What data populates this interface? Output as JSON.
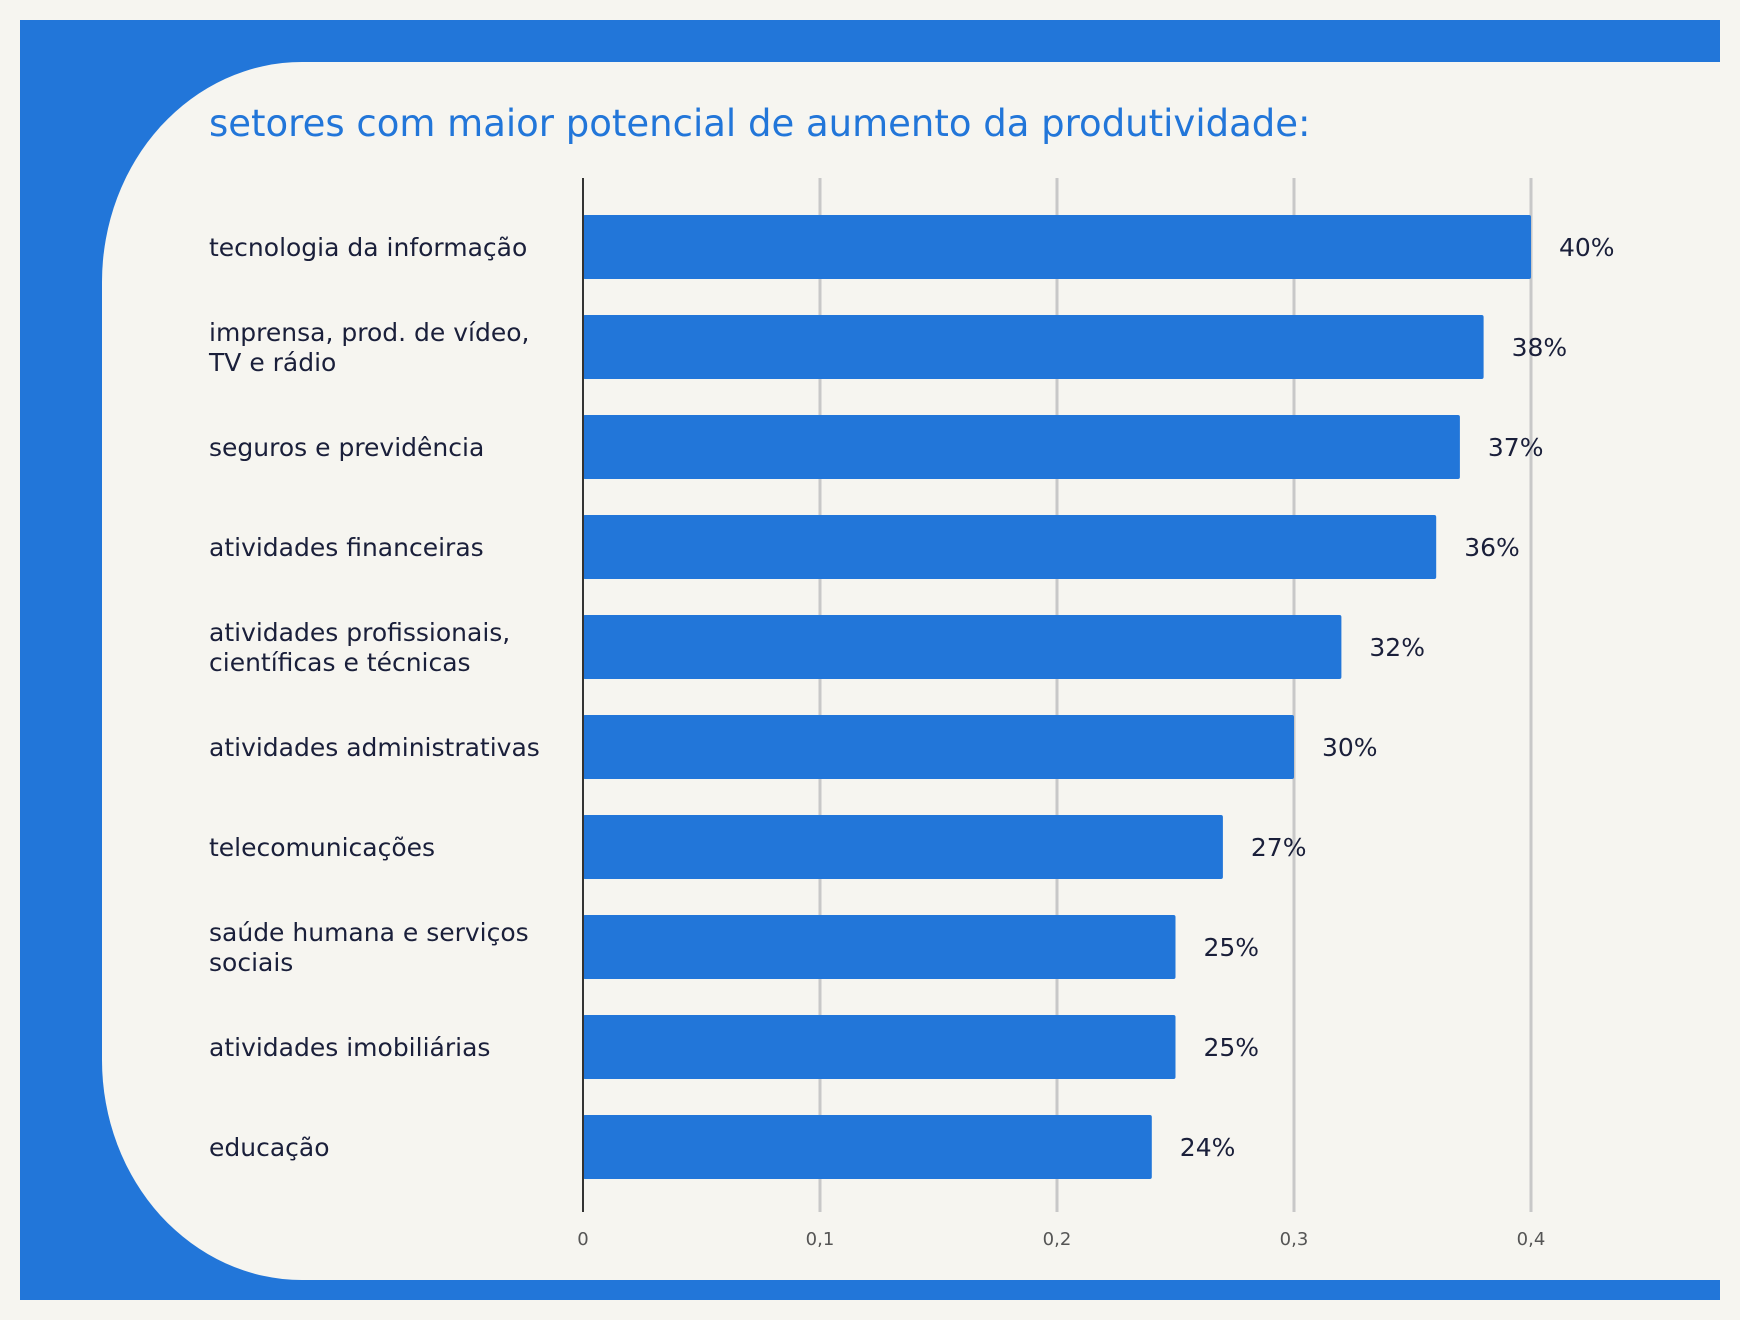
{
  "colors": {
    "frame": "#2276d9",
    "background": "#f6f5f0",
    "bar": "#2276d9",
    "title": "#2276d9",
    "label": "#1a1f3a",
    "grid": "#c8c8c8",
    "axis": "#333333",
    "tick": "#555555"
  },
  "chart_data": {
    "type": "bar",
    "orientation": "horizontal",
    "title": "setores com maior potencial de aumento da produtividade:",
    "categories": [
      [
        "tecnologia da informação"
      ],
      [
        "imprensa, prod. de vídeo,",
        "TV e rádio"
      ],
      [
        "seguros e previdência"
      ],
      [
        "atividades financeiras"
      ],
      [
        "atividades profissionais,",
        "científicas e técnicas"
      ],
      [
        "atividades administrativas"
      ],
      [
        "telecomunicações"
      ],
      [
        "saúde humana e serviços",
        "sociais"
      ],
      [
        "atividades imobiliárias"
      ],
      [
        "educação"
      ]
    ],
    "values": [
      0.4,
      0.38,
      0.37,
      0.36,
      0.32,
      0.3,
      0.27,
      0.25,
      0.25,
      0.24
    ],
    "data_labels": [
      "40%",
      "38%",
      "37%",
      "36%",
      "32%",
      "30%",
      "27%",
      "25%",
      "25%",
      "24%"
    ],
    "xticks": [
      0,
      0.1,
      0.2,
      0.3,
      0.4
    ],
    "xtick_labels": [
      "0",
      "0,1",
      "0,2",
      "0,3",
      "0,4"
    ],
    "xlim": [
      0,
      0.4
    ],
    "grid": true,
    "legend": "none"
  }
}
